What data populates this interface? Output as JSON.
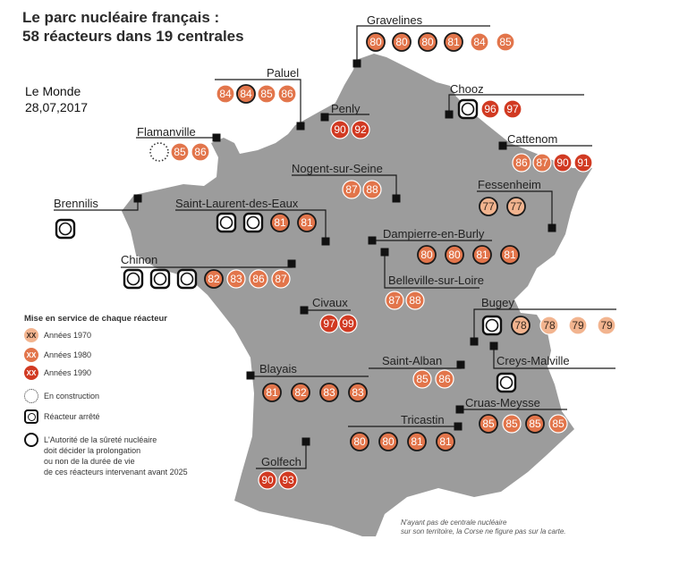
{
  "title": {
    "line1": "Le parc nucléaire français :",
    "line2": "58 réacteurs dans 19 centrales"
  },
  "source": {
    "name": "Le Monde",
    "date": "28,07,2017"
  },
  "colors": {
    "land": "#9c9c9c",
    "y1970": "#f2b48f",
    "y1980": "#e2754b",
    "y1990": "#d13a22",
    "marker": "#111111"
  },
  "legend": {
    "heading": "Mise en service de chaque réacteur",
    "items": [
      {
        "symbol": "XX",
        "label": "Années 1970",
        "kind": "y1970"
      },
      {
        "symbol": "XX",
        "label": "Années 1980",
        "kind": "y1980"
      },
      {
        "symbol": "XX",
        "label": "Années 1990",
        "kind": "y1990"
      },
      {
        "symbol": "",
        "label": "En construction",
        "kind": "construction"
      },
      {
        "symbol": "",
        "label": "Réacteur arrêté",
        "kind": "stopped"
      },
      {
        "symbol": "",
        "label": "L'Autorité de la sûreté nucléaire\ndoit décider la prolongation\nou non de la durée de vie\nde ces réacteurs intervenant avant 2025",
        "kind": "asn"
      }
    ]
  },
  "note": {
    "line1": "N'ayant pas de centrale nucléaire",
    "line2": "sur son territoire, la Corse ne figure pas sur la carte."
  },
  "plants": [
    {
      "name": "Gravelines",
      "reactors": [
        {
          "label": "80",
          "era": "1980",
          "asn": true
        },
        {
          "label": "80",
          "era": "1980",
          "asn": true
        },
        {
          "label": "80",
          "era": "1980",
          "asn": true
        },
        {
          "label": "81",
          "era": "1980",
          "asn": true
        },
        {
          "label": "84",
          "era": "1980"
        },
        {
          "label": "85",
          "era": "1980"
        }
      ]
    },
    {
      "name": "Paluel",
      "reactors": [
        {
          "label": "84",
          "era": "1980"
        },
        {
          "label": "84",
          "era": "1980",
          "asn": true
        },
        {
          "label": "85",
          "era": "1980"
        },
        {
          "label": "86",
          "era": "1980"
        }
      ]
    },
    {
      "name": "Penly",
      "reactors": [
        {
          "label": "90",
          "era": "1990"
        },
        {
          "label": "92",
          "era": "1990"
        }
      ]
    },
    {
      "name": "Chooz",
      "reactors": [
        {
          "label": "",
          "era": "stopped"
        },
        {
          "label": "96",
          "era": "1990"
        },
        {
          "label": "97",
          "era": "1990"
        }
      ]
    },
    {
      "name": "Flamanville",
      "reactors": [
        {
          "label": "",
          "era": "construction"
        },
        {
          "label": "85",
          "era": "1980"
        },
        {
          "label": "86",
          "era": "1980"
        }
      ]
    },
    {
      "name": "Cattenom",
      "reactors": [
        {
          "label": "86",
          "era": "1980"
        },
        {
          "label": "87",
          "era": "1980"
        },
        {
          "label": "90",
          "era": "1990"
        },
        {
          "label": "91",
          "era": "1990"
        }
      ]
    },
    {
      "name": "Nogent-sur-Seine",
      "reactors": [
        {
          "label": "87",
          "era": "1980"
        },
        {
          "label": "88",
          "era": "1980"
        }
      ]
    },
    {
      "name": "Fessenheim",
      "reactors": [
        {
          "label": "77",
          "era": "1970",
          "asn": true
        },
        {
          "label": "77",
          "era": "1970",
          "asn": true
        }
      ]
    },
    {
      "name": "Brennilis",
      "reactors": [
        {
          "label": "",
          "era": "stopped"
        }
      ]
    },
    {
      "name": "Saint-Laurent-des-Eaux",
      "reactors": [
        {
          "label": "",
          "era": "stopped"
        },
        {
          "label": "",
          "era": "stopped"
        },
        {
          "label": "81",
          "era": "1980",
          "asn": true
        },
        {
          "label": "81",
          "era": "1980",
          "asn": true
        }
      ]
    },
    {
      "name": "Dampierre-en-Burly",
      "reactors": [
        {
          "label": "80",
          "era": "1980",
          "asn": true
        },
        {
          "label": "80",
          "era": "1980",
          "asn": true
        },
        {
          "label": "81",
          "era": "1980",
          "asn": true
        },
        {
          "label": "81",
          "era": "1980",
          "asn": true
        }
      ]
    },
    {
      "name": "Chinon",
      "reactors": [
        {
          "label": "",
          "era": "stopped"
        },
        {
          "label": "",
          "era": "stopped"
        },
        {
          "label": "",
          "era": "stopped"
        },
        {
          "label": "82",
          "era": "1980",
          "asn": true
        },
        {
          "label": "83",
          "era": "1980"
        },
        {
          "label": "86",
          "era": "1980"
        },
        {
          "label": "87",
          "era": "1980"
        }
      ]
    },
    {
      "name": "Belleville-sur-Loire",
      "reactors": [
        {
          "label": "87",
          "era": "1980"
        },
        {
          "label": "88",
          "era": "1980"
        }
      ]
    },
    {
      "name": "Civaux",
      "reactors": [
        {
          "label": "97",
          "era": "1990"
        },
        {
          "label": "99",
          "era": "1990"
        }
      ]
    },
    {
      "name": "Bugey",
      "reactors": [
        {
          "label": "",
          "era": "stopped"
        },
        {
          "label": "78",
          "era": "1970",
          "asn": true
        },
        {
          "label": "78",
          "era": "1970"
        },
        {
          "label": "79",
          "era": "1970"
        },
        {
          "label": "79",
          "era": "1970"
        }
      ]
    },
    {
      "name": "Saint-Alban",
      "reactors": [
        {
          "label": "85",
          "era": "1980"
        },
        {
          "label": "86",
          "era": "1980"
        }
      ]
    },
    {
      "name": "Creys-Malville",
      "reactors": [
        {
          "label": "",
          "era": "stopped"
        }
      ]
    },
    {
      "name": "Blayais",
      "reactors": [
        {
          "label": "81",
          "era": "1980",
          "asn": true
        },
        {
          "label": "82",
          "era": "1980",
          "asn": true
        },
        {
          "label": "83",
          "era": "1980",
          "asn": true
        },
        {
          "label": "83",
          "era": "1980",
          "asn": true
        }
      ]
    },
    {
      "name": "Cruas-Meysse",
      "reactors": [
        {
          "label": "85",
          "era": "1980",
          "asn": true
        },
        {
          "label": "85",
          "era": "1980"
        },
        {
          "label": "85",
          "era": "1980",
          "asn": true
        },
        {
          "label": "85",
          "era": "1980"
        }
      ]
    },
    {
      "name": "Tricastin",
      "reactors": [
        {
          "label": "80",
          "era": "1980",
          "asn": true
        },
        {
          "label": "80",
          "era": "1980",
          "asn": true
        },
        {
          "label": "81",
          "era": "1980",
          "asn": true
        },
        {
          "label": "81",
          "era": "1980",
          "asn": true
        }
      ]
    },
    {
      "name": "Golfech",
      "reactors": [
        {
          "label": "90",
          "era": "1990"
        },
        {
          "label": "93",
          "era": "1990"
        }
      ]
    }
  ]
}
